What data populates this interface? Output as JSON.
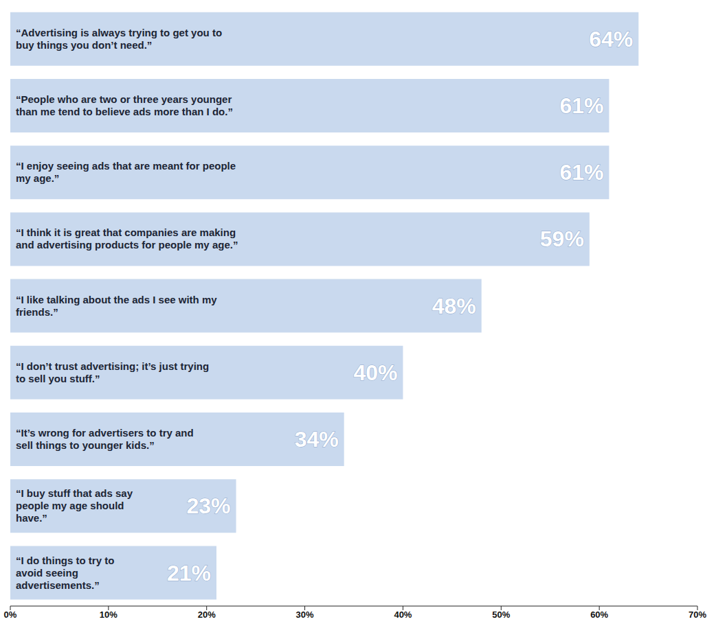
{
  "chart_data": {
    "type": "bar",
    "orientation": "horizontal",
    "categories": [
      "“Advertising is always trying to get you to buy things you don’t need.”",
      "“People who are two or three years younger than me tend to believe ads more than I do.”",
      "“I enjoy seeing ads that are meant for people my age.”",
      "“I think it is great that companies are making and advertising products for people my age.”",
      "“I like talking about the ads I see with my friends.”",
      "“I don’t trust advertising; it’s just trying to sell you stuff.”",
      "“It’s wrong for advertisers to try and sell things to younger kids.”",
      "“I buy stuff that ads say people my age should have.”",
      "“I do things to try to avoid seeing advertisements.”"
    ],
    "values": [
      64,
      61,
      61,
      59,
      48,
      40,
      34,
      23,
      21
    ],
    "value_labels": [
      "64%",
      "61%",
      "61%",
      "59%",
      "48%",
      "40%",
      "34%",
      "23%",
      "21%"
    ],
    "data_labels": true,
    "color": "#c9d9ee",
    "xlim": [
      0,
      70
    ],
    "xticks": [
      {
        "value": 0,
        "label": "0%"
      },
      {
        "value": 10,
        "label": "10%"
      },
      {
        "value": 20,
        "label": "20%"
      },
      {
        "value": 30,
        "label": "30%"
      },
      {
        "value": 40,
        "label": "40%"
      },
      {
        "value": 50,
        "label": "50%"
      },
      {
        "value": 60,
        "label": "60%"
      },
      {
        "value": 70,
        "label": "70%"
      }
    ],
    "grid": false
  }
}
